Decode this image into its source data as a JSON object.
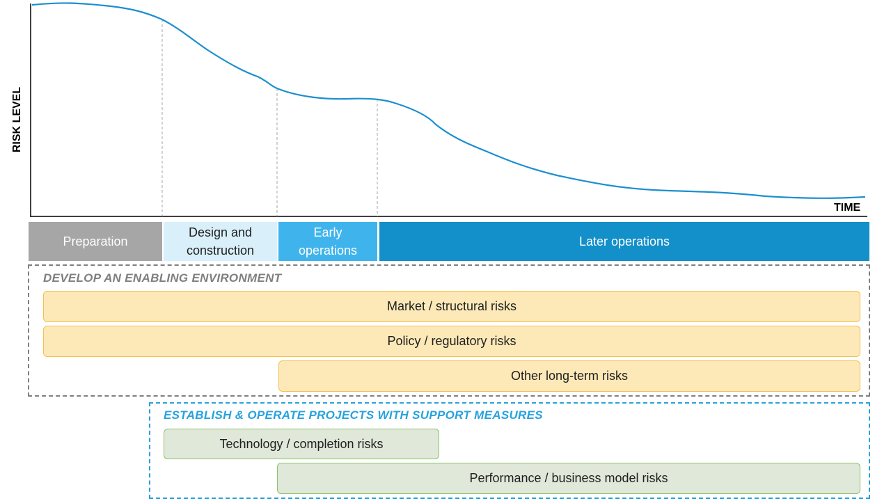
{
  "chart": {
    "y_axis_label": "RISK LEVEL",
    "x_axis_label": "TIME",
    "curve_color": "#1c8fd0"
  },
  "phases": {
    "preparation": "Preparation",
    "design_line1": "Design and",
    "design_line2": "construction",
    "early_line1": "Early",
    "early_line2": "operations",
    "later": "Later operations"
  },
  "enabling": {
    "title": "DEVELOP AN ENABLING ENVIRONMENT",
    "risks": [
      "Market / structural risks",
      "Policy / regulatory risks",
      "Other long-term risks"
    ]
  },
  "support": {
    "title": "ESTABLISH & OPERATE PROJECTS WITH SUPPORT MEASURES",
    "risks": [
      "Technology / completion risks",
      "Performance / business model risks"
    ]
  },
  "colors": {
    "preparation": "#a6a6a6",
    "design": "#d9f0fb",
    "early": "#3fb4ec",
    "later": "#138fc9",
    "enabling_border": "#7f7f7f",
    "support_border": "#28a2dc",
    "yellow_fill": "#fde9b8",
    "green_fill": "#dfe8d9"
  }
}
